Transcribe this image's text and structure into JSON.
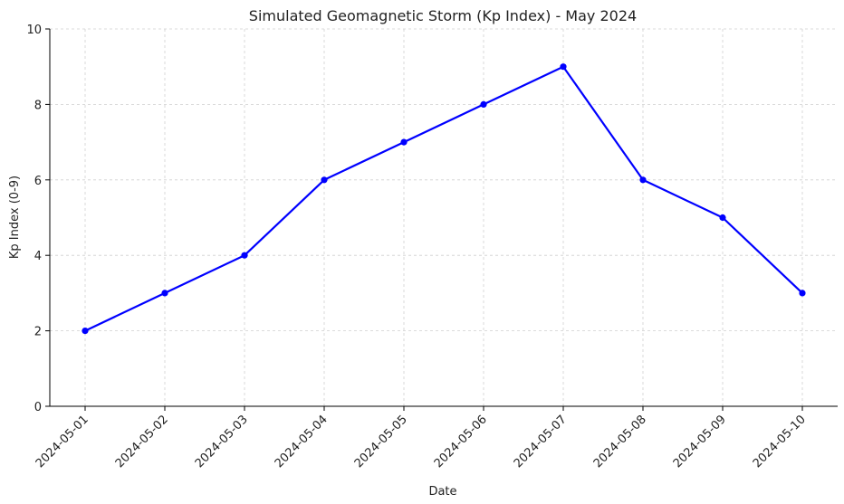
{
  "chart_data": {
    "type": "line",
    "title": "Simulated Geomagnetic Storm (Kp Index) - May 2024",
    "xlabel": "Date",
    "ylabel": "Kp Index (0-9)",
    "categories": [
      "2024-05-01",
      "2024-05-02",
      "2024-05-03",
      "2024-05-04",
      "2024-05-05",
      "2024-05-06",
      "2024-05-07",
      "2024-05-08",
      "2024-05-09",
      "2024-05-10"
    ],
    "series": [
      {
        "values": [
          2,
          3,
          4,
          6,
          7,
          8,
          9,
          6,
          5,
          3
        ],
        "color": "#0000ff"
      }
    ],
    "ylim": [
      0,
      10
    ],
    "yticks": [
      0,
      2,
      4,
      6,
      8,
      10
    ],
    "grid": true,
    "marker": "circle"
  }
}
